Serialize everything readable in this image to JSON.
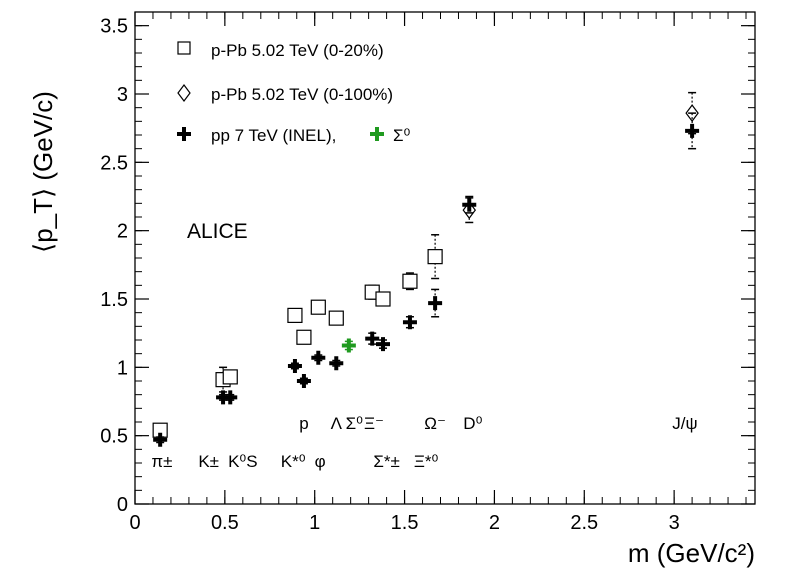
{
  "chart_data": {
    "type": "scatter",
    "title": "",
    "xlabel": "m (GeV/c²)",
    "ylabel": "⟨p_T⟩ (GeV/c)",
    "xlim": [
      0,
      3.45
    ],
    "ylim": [
      0,
      3.6
    ],
    "x_ticks": [
      "0",
      "0.5",
      "1",
      "1.5",
      "2",
      "2.5",
      "3"
    ],
    "y_ticks": [
      "0",
      "0.5",
      "1",
      "1.5",
      "2",
      "2.5",
      "3",
      "3.5"
    ],
    "grid": false,
    "legend_position": "top-left",
    "experiment_label": "ALICE",
    "legend": [
      {
        "marker": "square",
        "label": "p-Pb 5.02 TeV (0-20%)"
      },
      {
        "marker": "diamond",
        "label": "p-Pb 5.02 TeV (0-100%)"
      },
      {
        "marker": "cross",
        "label": "pp 7 TeV (INEL),",
        "extra_marker": "cross-green",
        "extra_label": "Σ⁰"
      }
    ],
    "series": [
      {
        "name": "p-Pb 5.02 TeV (0-20%)",
        "marker": "square",
        "color": "#000000",
        "points": [
          {
            "x": 0.14,
            "y": 0.54,
            "err": 0.02
          },
          {
            "x": 0.49,
            "y": 0.91,
            "err": 0.09
          },
          {
            "x": 0.53,
            "y": 0.93,
            "err": 0.03
          },
          {
            "x": 0.89,
            "y": 1.38,
            "err": 0.03
          },
          {
            "x": 0.94,
            "y": 1.22,
            "err": 0.04
          },
          {
            "x": 1.02,
            "y": 1.44,
            "err": 0.03
          },
          {
            "x": 1.12,
            "y": 1.36,
            "err": 0.03
          },
          {
            "x": 1.32,
            "y": 1.55,
            "err": 0.05
          },
          {
            "x": 1.38,
            "y": 1.5,
            "err": 0.04
          },
          {
            "x": 1.53,
            "y": 1.63,
            "err": 0.06
          },
          {
            "x": 1.67,
            "y": 1.81,
            "err": 0.16
          }
        ]
      },
      {
        "name": "p-Pb 5.02 TeV (0-100%)",
        "marker": "diamond",
        "color": "#000000",
        "points": [
          {
            "x": 1.86,
            "y": 2.15,
            "err": 0.09
          },
          {
            "x": 3.1,
            "y": 2.86,
            "err": 0.15
          }
        ]
      },
      {
        "name": "pp 7 TeV (INEL),",
        "marker": "cross",
        "color": "#000000",
        "points": [
          {
            "x": 0.14,
            "y": 0.47,
            "err": 0.02
          },
          {
            "x": 0.49,
            "y": 0.78,
            "err": 0.02
          },
          {
            "x": 0.53,
            "y": 0.78,
            "err": 0.02
          },
          {
            "x": 0.89,
            "y": 1.01,
            "err": 0.02
          },
          {
            "x": 0.94,
            "y": 0.9,
            "err": 0.02
          },
          {
            "x": 1.02,
            "y": 1.07,
            "err": 0.02
          },
          {
            "x": 1.12,
            "y": 1.03,
            "err": 0.02
          },
          {
            "x": 1.32,
            "y": 1.21,
            "err": 0.04
          },
          {
            "x": 1.38,
            "y": 1.17,
            "err": 0.03
          },
          {
            "x": 1.53,
            "y": 1.33,
            "err": 0.04
          },
          {
            "x": 1.67,
            "y": 1.47,
            "err": 0.1
          },
          {
            "x": 1.86,
            "y": 2.19,
            "err": 0.06
          },
          {
            "x": 3.1,
            "y": 2.73,
            "err": 0.13
          }
        ]
      },
      {
        "name": "Σ⁰",
        "marker": "cross",
        "color": "#1f9a1f",
        "points": [
          {
            "x": 1.19,
            "y": 1.16,
            "err": 0.03
          }
        ]
      }
    ],
    "particle_labels": [
      {
        "text": "p",
        "x": 0.94,
        "y": 0.55
      },
      {
        "text": "Λ",
        "x": 1.12,
        "y": 0.55
      },
      {
        "text": "Σ⁰",
        "x": 1.22,
        "y": 0.55
      },
      {
        "text": "Ξ⁻",
        "x": 1.33,
        "y": 0.55
      },
      {
        "text": "Ω⁻",
        "x": 1.67,
        "y": 0.55
      },
      {
        "text": "D⁰",
        "x": 1.88,
        "y": 0.55
      },
      {
        "text": "J/ψ",
        "x": 3.06,
        "y": 0.55
      },
      {
        "text": "π±",
        "x": 0.15,
        "y": 0.27
      },
      {
        "text": "K±",
        "x": 0.41,
        "y": 0.27
      },
      {
        "text": "K⁰S",
        "x": 0.6,
        "y": 0.27
      },
      {
        "text": "K*⁰",
        "x": 0.88,
        "y": 0.27
      },
      {
        "text": "φ",
        "x": 1.03,
        "y": 0.27
      },
      {
        "text": "Σ*±",
        "x": 1.4,
        "y": 0.27
      },
      {
        "text": "Ξ*⁰",
        "x": 1.62,
        "y": 0.27
      }
    ]
  }
}
